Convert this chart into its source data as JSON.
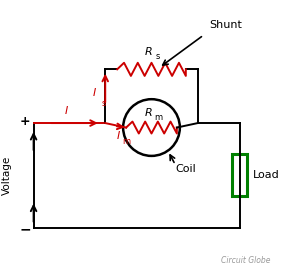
{
  "bg_color": "#ffffff",
  "wire_color": "#000000",
  "resistor_color": "#cc0000",
  "load_color": "#008000",
  "text_color": "#000000",
  "gray_text_color": "#999999",
  "title": "Circuit Globe",
  "labels": {
    "plus": "+",
    "minus": "−",
    "voltage": "Voltage",
    "shunt": "Shunt",
    "Rs": "R",
    "Rs_sub": "s",
    "Rm": "R",
    "Rm_sub": "m",
    "Is": "I",
    "Is_sub": "s",
    "Im": "I",
    "Im_sub": "m",
    "I": "I",
    "coil": "Coil",
    "load": "Load"
  },
  "figsize": [
    3.0,
    2.73
  ],
  "dpi": 100,
  "xlim": [
    0,
    10
  ],
  "ylim": [
    0,
    9.1
  ]
}
